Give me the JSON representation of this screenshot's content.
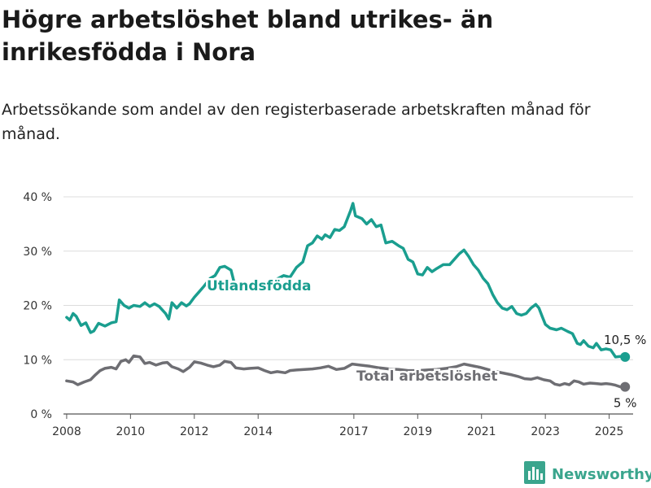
{
  "header": {
    "title": "Högre arbetslöshet bland utrikes- än inrikesfödda i Nora",
    "subtitle": "Arbetssökande som andel av den registerbaserade arbetskraften månad för månad."
  },
  "brand": {
    "name": "Newsworthy",
    "logo_icon": "bar-chart-logo-icon",
    "color": "#3aa58d"
  },
  "chart_data": {
    "type": "line",
    "title": "Högre arbetslöshet bland utrikes- än inrikesfödda i Nora",
    "subtitle": "Arbetssökande som andel av den registerbaserade arbetskraften månad för månad.",
    "xlabel": "",
    "ylabel": "",
    "xlim": [
      2007.9,
      2025.75
    ],
    "ylim": [
      0,
      40
    ],
    "x_ticks": [
      2008,
      2010,
      2012,
      2014,
      2017,
      2019,
      2021,
      2023,
      2025
    ],
    "y_ticks": [
      0,
      10,
      20,
      30,
      40
    ],
    "y_tick_labels": [
      "0 %",
      "10 %",
      "20 %",
      "30 %",
      "40 %"
    ],
    "grid": "horizontal",
    "legend": "inline labels",
    "series": [
      {
        "name": "Utlandsfödda",
        "color": "#1a9e8f",
        "end_label": "10,5 %",
        "points": [
          [
            2008.0,
            17.8
          ],
          [
            2008.1,
            17.3
          ],
          [
            2008.2,
            18.5
          ],
          [
            2008.3,
            18.0
          ],
          [
            2008.45,
            16.3
          ],
          [
            2008.6,
            16.8
          ],
          [
            2008.75,
            15.0
          ],
          [
            2008.85,
            15.3
          ],
          [
            2009.0,
            16.7
          ],
          [
            2009.2,
            16.2
          ],
          [
            2009.4,
            16.8
          ],
          [
            2009.55,
            17.0
          ],
          [
            2009.65,
            21.0
          ],
          [
            2009.8,
            20.0
          ],
          [
            2009.95,
            19.5
          ],
          [
            2010.1,
            20.0
          ],
          [
            2010.3,
            19.8
          ],
          [
            2010.45,
            20.5
          ],
          [
            2010.6,
            19.8
          ],
          [
            2010.75,
            20.3
          ],
          [
            2010.9,
            19.8
          ],
          [
            2011.1,
            18.5
          ],
          [
            2011.2,
            17.5
          ],
          [
            2011.3,
            20.5
          ],
          [
            2011.45,
            19.5
          ],
          [
            2011.6,
            20.5
          ],
          [
            2011.75,
            19.9
          ],
          [
            2011.85,
            20.3
          ],
          [
            2012.0,
            21.5
          ],
          [
            2012.15,
            22.5
          ],
          [
            2012.3,
            23.5
          ],
          [
            2012.5,
            25.0
          ],
          [
            2012.65,
            25.5
          ],
          [
            2012.8,
            27.0
          ],
          [
            2012.95,
            27.2
          ],
          [
            2013.15,
            26.5
          ],
          [
            2013.3,
            23.0
          ],
          [
            2013.6,
            24.0
          ],
          [
            2014.0,
            23.5
          ],
          [
            2014.4,
            24.3
          ],
          [
            2014.8,
            25.5
          ],
          [
            2015.0,
            25.2
          ],
          [
            2015.2,
            27.0
          ],
          [
            2015.4,
            28.0
          ],
          [
            2015.55,
            31.0
          ],
          [
            2015.7,
            31.5
          ],
          [
            2015.85,
            32.8
          ],
          [
            2016.0,
            32.2
          ],
          [
            2016.1,
            33.0
          ],
          [
            2016.25,
            32.5
          ],
          [
            2016.4,
            34.0
          ],
          [
            2016.55,
            33.8
          ],
          [
            2016.7,
            34.5
          ],
          [
            2016.8,
            36.0
          ],
          [
            2016.9,
            37.5
          ],
          [
            2016.97,
            38.8
          ],
          [
            2017.05,
            36.5
          ],
          [
            2017.25,
            36.0
          ],
          [
            2017.4,
            35.0
          ],
          [
            2017.55,
            35.8
          ],
          [
            2017.7,
            34.5
          ],
          [
            2017.85,
            34.8
          ],
          [
            2018.0,
            31.5
          ],
          [
            2018.2,
            31.8
          ],
          [
            2018.4,
            31.0
          ],
          [
            2018.55,
            30.5
          ],
          [
            2018.7,
            28.5
          ],
          [
            2018.85,
            28.0
          ],
          [
            2019.0,
            25.8
          ],
          [
            2019.15,
            25.6
          ],
          [
            2019.3,
            27.0
          ],
          [
            2019.45,
            26.2
          ],
          [
            2019.6,
            26.8
          ],
          [
            2019.8,
            27.5
          ],
          [
            2020.0,
            27.5
          ],
          [
            2020.15,
            28.5
          ],
          [
            2020.3,
            29.5
          ],
          [
            2020.45,
            30.2
          ],
          [
            2020.6,
            29.0
          ],
          [
            2020.75,
            27.5
          ],
          [
            2020.9,
            26.5
          ],
          [
            2021.05,
            25.0
          ],
          [
            2021.2,
            24.0
          ],
          [
            2021.35,
            22.0
          ],
          [
            2021.5,
            20.5
          ],
          [
            2021.65,
            19.5
          ],
          [
            2021.8,
            19.2
          ],
          [
            2021.95,
            19.8
          ],
          [
            2022.1,
            18.5
          ],
          [
            2022.25,
            18.2
          ],
          [
            2022.4,
            18.5
          ],
          [
            2022.55,
            19.5
          ],
          [
            2022.7,
            20.2
          ],
          [
            2022.8,
            19.5
          ],
          [
            2022.9,
            18.0
          ],
          [
            2023.0,
            16.5
          ],
          [
            2023.15,
            15.8
          ],
          [
            2023.35,
            15.5
          ],
          [
            2023.5,
            15.8
          ],
          [
            2023.7,
            15.2
          ],
          [
            2023.85,
            14.8
          ],
          [
            2024.0,
            13.0
          ],
          [
            2024.1,
            12.8
          ],
          [
            2024.2,
            13.5
          ],
          [
            2024.35,
            12.5
          ],
          [
            2024.5,
            12.2
          ],
          [
            2024.6,
            13.0
          ],
          [
            2024.75,
            11.8
          ],
          [
            2024.9,
            12.0
          ],
          [
            2025.05,
            11.8
          ],
          [
            2025.2,
            10.5
          ],
          [
            2025.35,
            10.6
          ],
          [
            2025.5,
            10.5
          ]
        ]
      },
      {
        "name": "Total arbetslöshet",
        "color": "#6e6e73",
        "end_label": "5 %",
        "points": [
          [
            2008.0,
            6.1
          ],
          [
            2008.2,
            5.9
          ],
          [
            2008.35,
            5.4
          ],
          [
            2008.55,
            5.9
          ],
          [
            2008.75,
            6.3
          ],
          [
            2008.9,
            7.2
          ],
          [
            2009.05,
            8.0
          ],
          [
            2009.2,
            8.4
          ],
          [
            2009.4,
            8.6
          ],
          [
            2009.55,
            8.3
          ],
          [
            2009.7,
            9.7
          ],
          [
            2009.85,
            10.0
          ],
          [
            2009.95,
            9.5
          ],
          [
            2010.1,
            10.7
          ],
          [
            2010.3,
            10.5
          ],
          [
            2010.45,
            9.3
          ],
          [
            2010.6,
            9.5
          ],
          [
            2010.8,
            9.0
          ],
          [
            2011.0,
            9.4
          ],
          [
            2011.15,
            9.5
          ],
          [
            2011.3,
            8.7
          ],
          [
            2011.5,
            8.3
          ],
          [
            2011.65,
            7.8
          ],
          [
            2011.85,
            8.6
          ],
          [
            2012.0,
            9.6
          ],
          [
            2012.2,
            9.4
          ],
          [
            2012.4,
            9.0
          ],
          [
            2012.6,
            8.7
          ],
          [
            2012.8,
            9.0
          ],
          [
            2012.95,
            9.7
          ],
          [
            2013.15,
            9.5
          ],
          [
            2013.3,
            8.5
          ],
          [
            2013.55,
            8.3
          ],
          [
            2013.75,
            8.4
          ],
          [
            2014.0,
            8.5
          ],
          [
            2014.2,
            8.0
          ],
          [
            2014.4,
            7.6
          ],
          [
            2014.6,
            7.8
          ],
          [
            2014.85,
            7.6
          ],
          [
            2015.0,
            8.0
          ],
          [
            2015.2,
            8.1
          ],
          [
            2015.45,
            8.2
          ],
          [
            2015.7,
            8.3
          ],
          [
            2015.95,
            8.5
          ],
          [
            2016.2,
            8.8
          ],
          [
            2016.45,
            8.2
          ],
          [
            2016.7,
            8.4
          ],
          [
            2016.95,
            9.2
          ],
          [
            2017.2,
            9.0
          ],
          [
            2017.5,
            8.8
          ],
          [
            2017.8,
            8.5
          ],
          [
            2018.1,
            8.3
          ],
          [
            2018.4,
            8.2
          ],
          [
            2018.7,
            8.0
          ],
          [
            2019.0,
            8.0
          ],
          [
            2019.3,
            8.1
          ],
          [
            2019.6,
            8.2
          ],
          [
            2019.9,
            8.4
          ],
          [
            2020.2,
            8.7
          ],
          [
            2020.45,
            9.2
          ],
          [
            2020.7,
            8.9
          ],
          [
            2020.95,
            8.6
          ],
          [
            2021.2,
            8.2
          ],
          [
            2021.45,
            7.8
          ],
          [
            2021.7,
            7.5
          ],
          [
            2021.95,
            7.2
          ],
          [
            2022.15,
            6.9
          ],
          [
            2022.35,
            6.5
          ],
          [
            2022.55,
            6.4
          ],
          [
            2022.75,
            6.7
          ],
          [
            2022.95,
            6.3
          ],
          [
            2023.15,
            6.1
          ],
          [
            2023.3,
            5.5
          ],
          [
            2023.45,
            5.3
          ],
          [
            2023.6,
            5.6
          ],
          [
            2023.75,
            5.4
          ],
          [
            2023.9,
            6.1
          ],
          [
            2024.05,
            5.9
          ],
          [
            2024.2,
            5.5
          ],
          [
            2024.4,
            5.7
          ],
          [
            2024.6,
            5.6
          ],
          [
            2024.75,
            5.5
          ],
          [
            2024.9,
            5.6
          ],
          [
            2025.05,
            5.5
          ],
          [
            2025.2,
            5.3
          ],
          [
            2025.35,
            5.0
          ],
          [
            2025.5,
            5.0
          ]
        ]
      }
    ]
  }
}
